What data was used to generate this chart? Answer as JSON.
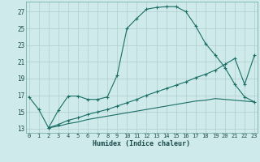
{
  "xlabel": "Humidex (Indice chaleur)",
  "bg_color": "#ceeaea",
  "grid_color": "#b0cccc",
  "line_color": "#1a6e65",
  "x_ticks": [
    0,
    1,
    2,
    3,
    4,
    5,
    6,
    7,
    8,
    9,
    10,
    11,
    12,
    13,
    14,
    15,
    16,
    17,
    18,
    19,
    20,
    21,
    22,
    23
  ],
  "y_ticks": [
    13,
    15,
    17,
    19,
    21,
    23,
    25,
    27
  ],
  "ylim": [
    12.5,
    28.2
  ],
  "xlim": [
    -0.3,
    23.3
  ],
  "line1_x": [
    0,
    1,
    2,
    3,
    4,
    5,
    6,
    7,
    8,
    9,
    10,
    11,
    12,
    13,
    14,
    15,
    16,
    17,
    18,
    19,
    20,
    21,
    22,
    23
  ],
  "line1_y": [
    16.8,
    15.3,
    13.1,
    15.2,
    16.9,
    16.9,
    16.5,
    16.5,
    16.8,
    19.4,
    25.0,
    26.2,
    27.3,
    27.5,
    27.6,
    27.6,
    27.0,
    25.3,
    23.2,
    21.8,
    20.3,
    18.3,
    16.8,
    16.2
  ],
  "line2_x": [
    2,
    3,
    4,
    5,
    6,
    7,
    8,
    9,
    10,
    11,
    12,
    13,
    14,
    15,
    16,
    17,
    18,
    19,
    20,
    21,
    22,
    23
  ],
  "line2_y": [
    13.1,
    13.5,
    14.0,
    14.3,
    14.7,
    15.0,
    15.3,
    15.7,
    16.1,
    16.5,
    17.0,
    17.4,
    17.8,
    18.2,
    18.6,
    19.1,
    19.5,
    20.0,
    20.7,
    21.4,
    18.3,
    21.8
  ],
  "line3_x": [
    2,
    3,
    4,
    5,
    6,
    7,
    8,
    9,
    10,
    11,
    12,
    13,
    14,
    15,
    16,
    17,
    18,
    19,
    20,
    21,
    22,
    23
  ],
  "line3_y": [
    13.1,
    13.3,
    13.6,
    13.8,
    14.1,
    14.3,
    14.5,
    14.7,
    14.9,
    15.1,
    15.3,
    15.5,
    15.7,
    15.9,
    16.1,
    16.3,
    16.4,
    16.6,
    16.5,
    16.4,
    16.3,
    16.2
  ]
}
